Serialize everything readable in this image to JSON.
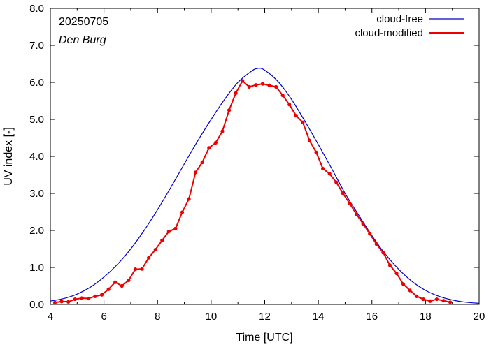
{
  "chart_data": {
    "type": "line",
    "title": "",
    "xlabel": "Time  [UTC]",
    "ylabel": "UV index  [-]",
    "xlim": [
      4,
      20
    ],
    "ylim": [
      0,
      8
    ],
    "xticks": [
      4,
      6,
      8,
      10,
      12,
      14,
      16,
      18,
      20
    ],
    "yticks": [
      "0.0",
      "1.0",
      "2.0",
      "3.0",
      "4.0",
      "5.0",
      "6.0",
      "7.0",
      "8.0"
    ],
    "annotations": [
      "20250705",
      "Den Burg"
    ],
    "legend_position": "top-right",
    "series": [
      {
        "name": "cloud-free",
        "color": "#0000cc",
        "markers": false,
        "x": [
          4.0,
          4.5,
          5.0,
          5.5,
          6.0,
          6.5,
          7.0,
          7.5,
          8.0,
          8.5,
          9.0,
          9.5,
          10.0,
          10.5,
          11.0,
          11.5,
          11.75,
          12.0,
          12.5,
          13.0,
          13.5,
          14.0,
          14.5,
          15.0,
          15.5,
          16.0,
          16.5,
          17.0,
          17.5,
          18.0,
          18.5,
          19.0,
          19.5,
          20.0
        ],
        "y": [
          0.09,
          0.16,
          0.28,
          0.47,
          0.74,
          1.08,
          1.5,
          2.0,
          2.56,
          3.17,
          3.8,
          4.42,
          5.0,
          5.54,
          6.0,
          6.3,
          6.38,
          6.33,
          6.02,
          5.54,
          4.95,
          4.32,
          3.67,
          3.0,
          2.42,
          1.86,
          1.36,
          0.95,
          0.62,
          0.38,
          0.22,
          0.12,
          0.06,
          0.03
        ]
      },
      {
        "name": "cloud-modified",
        "color": "#ee0000",
        "markers": true,
        "x": [
          4.17,
          4.42,
          4.67,
          4.92,
          5.17,
          5.42,
          5.67,
          5.92,
          6.17,
          6.42,
          6.67,
          6.92,
          7.17,
          7.42,
          7.67,
          7.92,
          8.17,
          8.42,
          8.67,
          8.92,
          9.17,
          9.42,
          9.67,
          9.92,
          10.17,
          10.42,
          10.67,
          10.92,
          11.17,
          11.42,
          11.67,
          11.92,
          12.17,
          12.42,
          12.67,
          12.92,
          13.17,
          13.42,
          13.67,
          13.92,
          14.17,
          14.42,
          14.67,
          14.92,
          15.17,
          15.42,
          15.67,
          15.92,
          16.17,
          16.42,
          16.67,
          16.92,
          17.17,
          17.42,
          17.67,
          17.92,
          18.17,
          18.42,
          18.67,
          18.92
        ],
        "y": [
          0.05,
          0.08,
          0.07,
          0.14,
          0.17,
          0.16,
          0.22,
          0.26,
          0.41,
          0.6,
          0.5,
          0.65,
          0.95,
          0.96,
          1.26,
          1.48,
          1.73,
          1.97,
          2.05,
          2.49,
          2.85,
          3.57,
          3.84,
          4.23,
          4.37,
          4.68,
          5.25,
          5.71,
          6.04,
          5.88,
          5.93,
          5.96,
          5.92,
          5.88,
          5.65,
          5.4,
          5.1,
          4.92,
          4.43,
          4.11,
          3.67,
          3.53,
          3.3,
          3.0,
          2.73,
          2.44,
          2.18,
          1.91,
          1.63,
          1.4,
          1.06,
          0.84,
          0.55,
          0.38,
          0.22,
          0.14,
          0.09,
          0.14,
          0.1,
          0.06
        ]
      }
    ]
  }
}
